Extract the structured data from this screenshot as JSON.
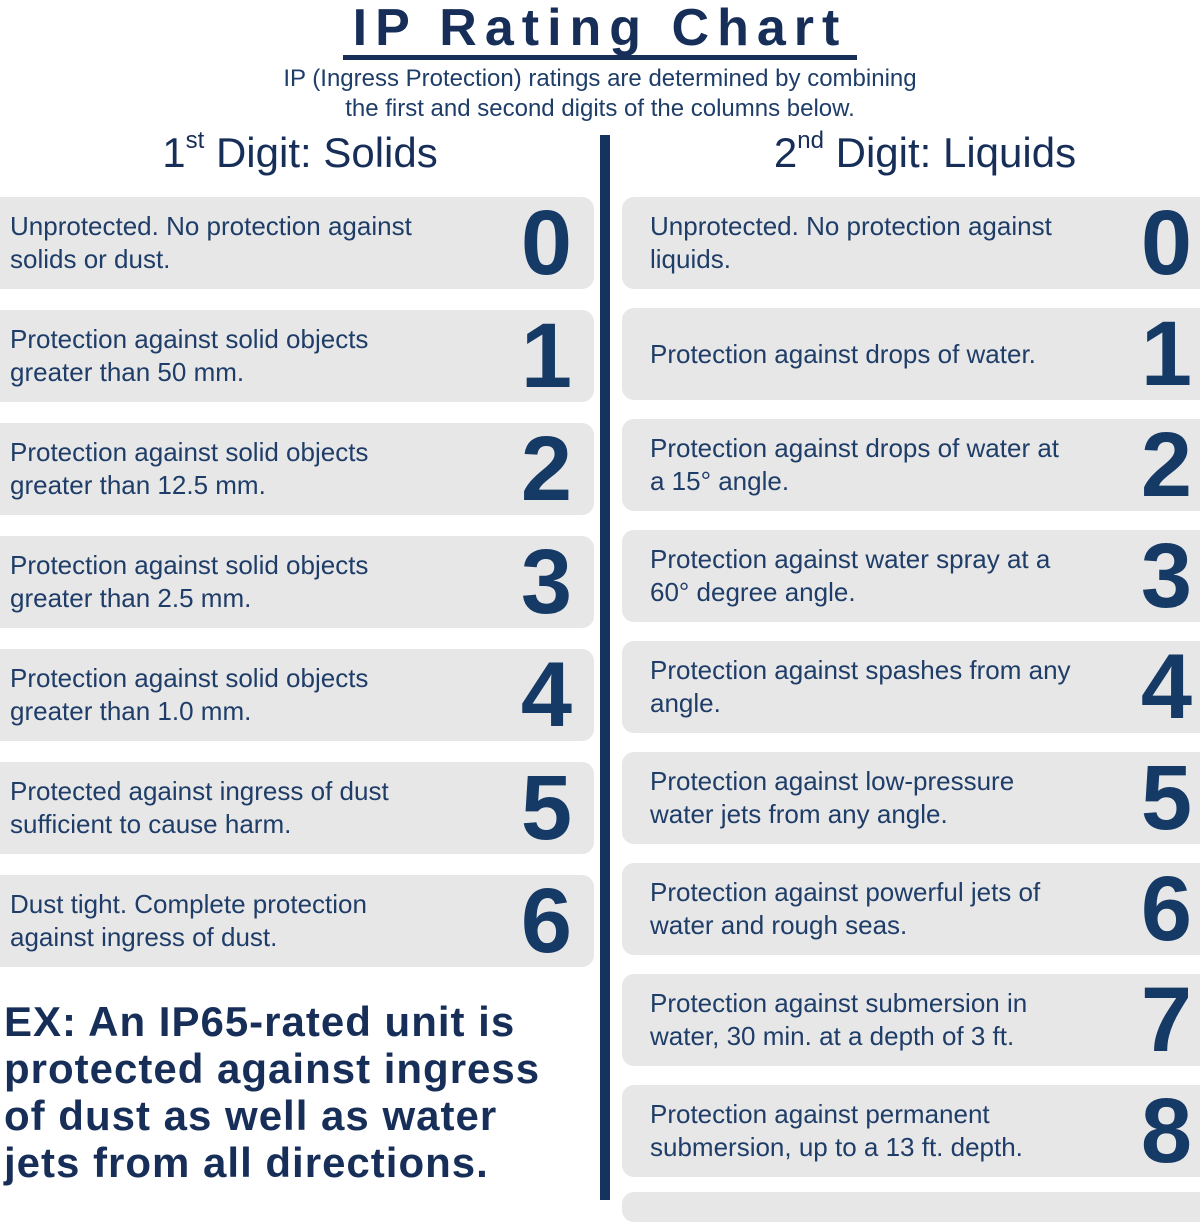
{
  "palette": {
    "title_navy": "#172F58",
    "text_navy": "#1E3D68",
    "digit_navy": "#163A66",
    "divider_navy": "#14335E",
    "card_bg": "#E8E7E7",
    "background": "#FFFFFF"
  },
  "header": {
    "title": "IP Rating Chart",
    "subtitle": "IP (Ingress Protection) ratings are determined by combining\nthe first and second digits of the columns below."
  },
  "columns": [
    {
      "id": "solids",
      "heading": {
        "number": "1",
        "ordinal": "st",
        "rest": " Digit: Solids"
      },
      "rows": [
        {
          "digit": "0",
          "description": "Unprotected. No protection against\nsolids or dust."
        },
        {
          "digit": "1",
          "description": "Protection against solid objects\ngreater than 50 mm."
        },
        {
          "digit": "2",
          "description": "Protection against solid objects\ngreater than 12.5 mm."
        },
        {
          "digit": "3",
          "description": "Protection against solid objects\ngreater than 2.5 mm."
        },
        {
          "digit": "4",
          "description": "Protection against solid objects\ngreater than 1.0 mm."
        },
        {
          "digit": "5",
          "description": "Protected against ingress of dust\nsufficient to cause harm."
        },
        {
          "digit": "6",
          "description": "Dust tight. Complete protection\nagainst ingress of dust."
        }
      ]
    },
    {
      "id": "liquids",
      "heading": {
        "number": "2",
        "ordinal": "nd",
        "rest": " Digit: Liquids"
      },
      "rows": [
        {
          "digit": "0",
          "description": "Unprotected. No protection against\nliquids."
        },
        {
          "digit": "1",
          "description": "Protection against drops of water."
        },
        {
          "digit": "2",
          "description": "Protection against drops of water at\na 15° angle."
        },
        {
          "digit": "3",
          "description": "Protection against water spray at a\n60° degree angle."
        },
        {
          "digit": "4",
          "description": "Protection against spashes from any\nangle."
        },
        {
          "digit": "5",
          "description": "Protection against low-pressure\nwater jets from any angle."
        },
        {
          "digit": "6",
          "description": "Protection against powerful jets of\nwater and rough seas."
        },
        {
          "digit": "7",
          "description": "Protection against submersion in\nwater, 30 min. at a depth of 3 ft."
        },
        {
          "digit": "8",
          "description": "Protection against permanent\nsubmersion, up to a 13 ft. depth."
        }
      ]
    }
  ],
  "example": {
    "text": "EX: An IP65-rated unit is\nprotected against ingress\nof dust as well as water\njets from all directions."
  }
}
